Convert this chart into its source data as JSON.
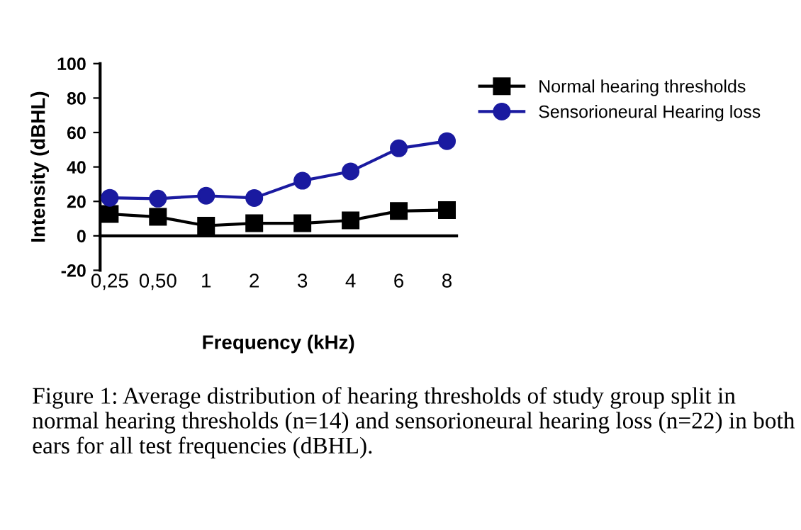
{
  "chart_data": {
    "type": "line",
    "xlabel": "Frequency (kHz)",
    "ylabel": "Intensity (dBHL)",
    "categories": [
      "0,25",
      "0,50",
      "1",
      "2",
      "3",
      "4",
      "6",
      "8"
    ],
    "series": [
      {
        "name": "Normal hearing thresholds",
        "color": "#000000",
        "marker": "square",
        "values": [
          12.7,
          11,
          5.9,
          7.3,
          7.3,
          9,
          14.4,
          15
        ]
      },
      {
        "name": "Sensorioneural Hearing loss",
        "color": "#1a1aa0",
        "marker": "circle",
        "values": [
          22.1,
          21.6,
          23.3,
          22,
          32,
          37.4,
          50.8,
          55
        ]
      }
    ],
    "ylim": [
      -20,
      100
    ],
    "yticks": [
      -20,
      0,
      20,
      40,
      60,
      80,
      100
    ],
    "grid": false,
    "legend": "top right",
    "line_style": "solid",
    "annotations": [
      "Figure 1: Average distribution of hearing thresholds of study group split in normal hearing thresholds (n=14) and sensorioneural hearing loss (n=22) in both ears for all test frequencies (dBHL)."
    ]
  }
}
